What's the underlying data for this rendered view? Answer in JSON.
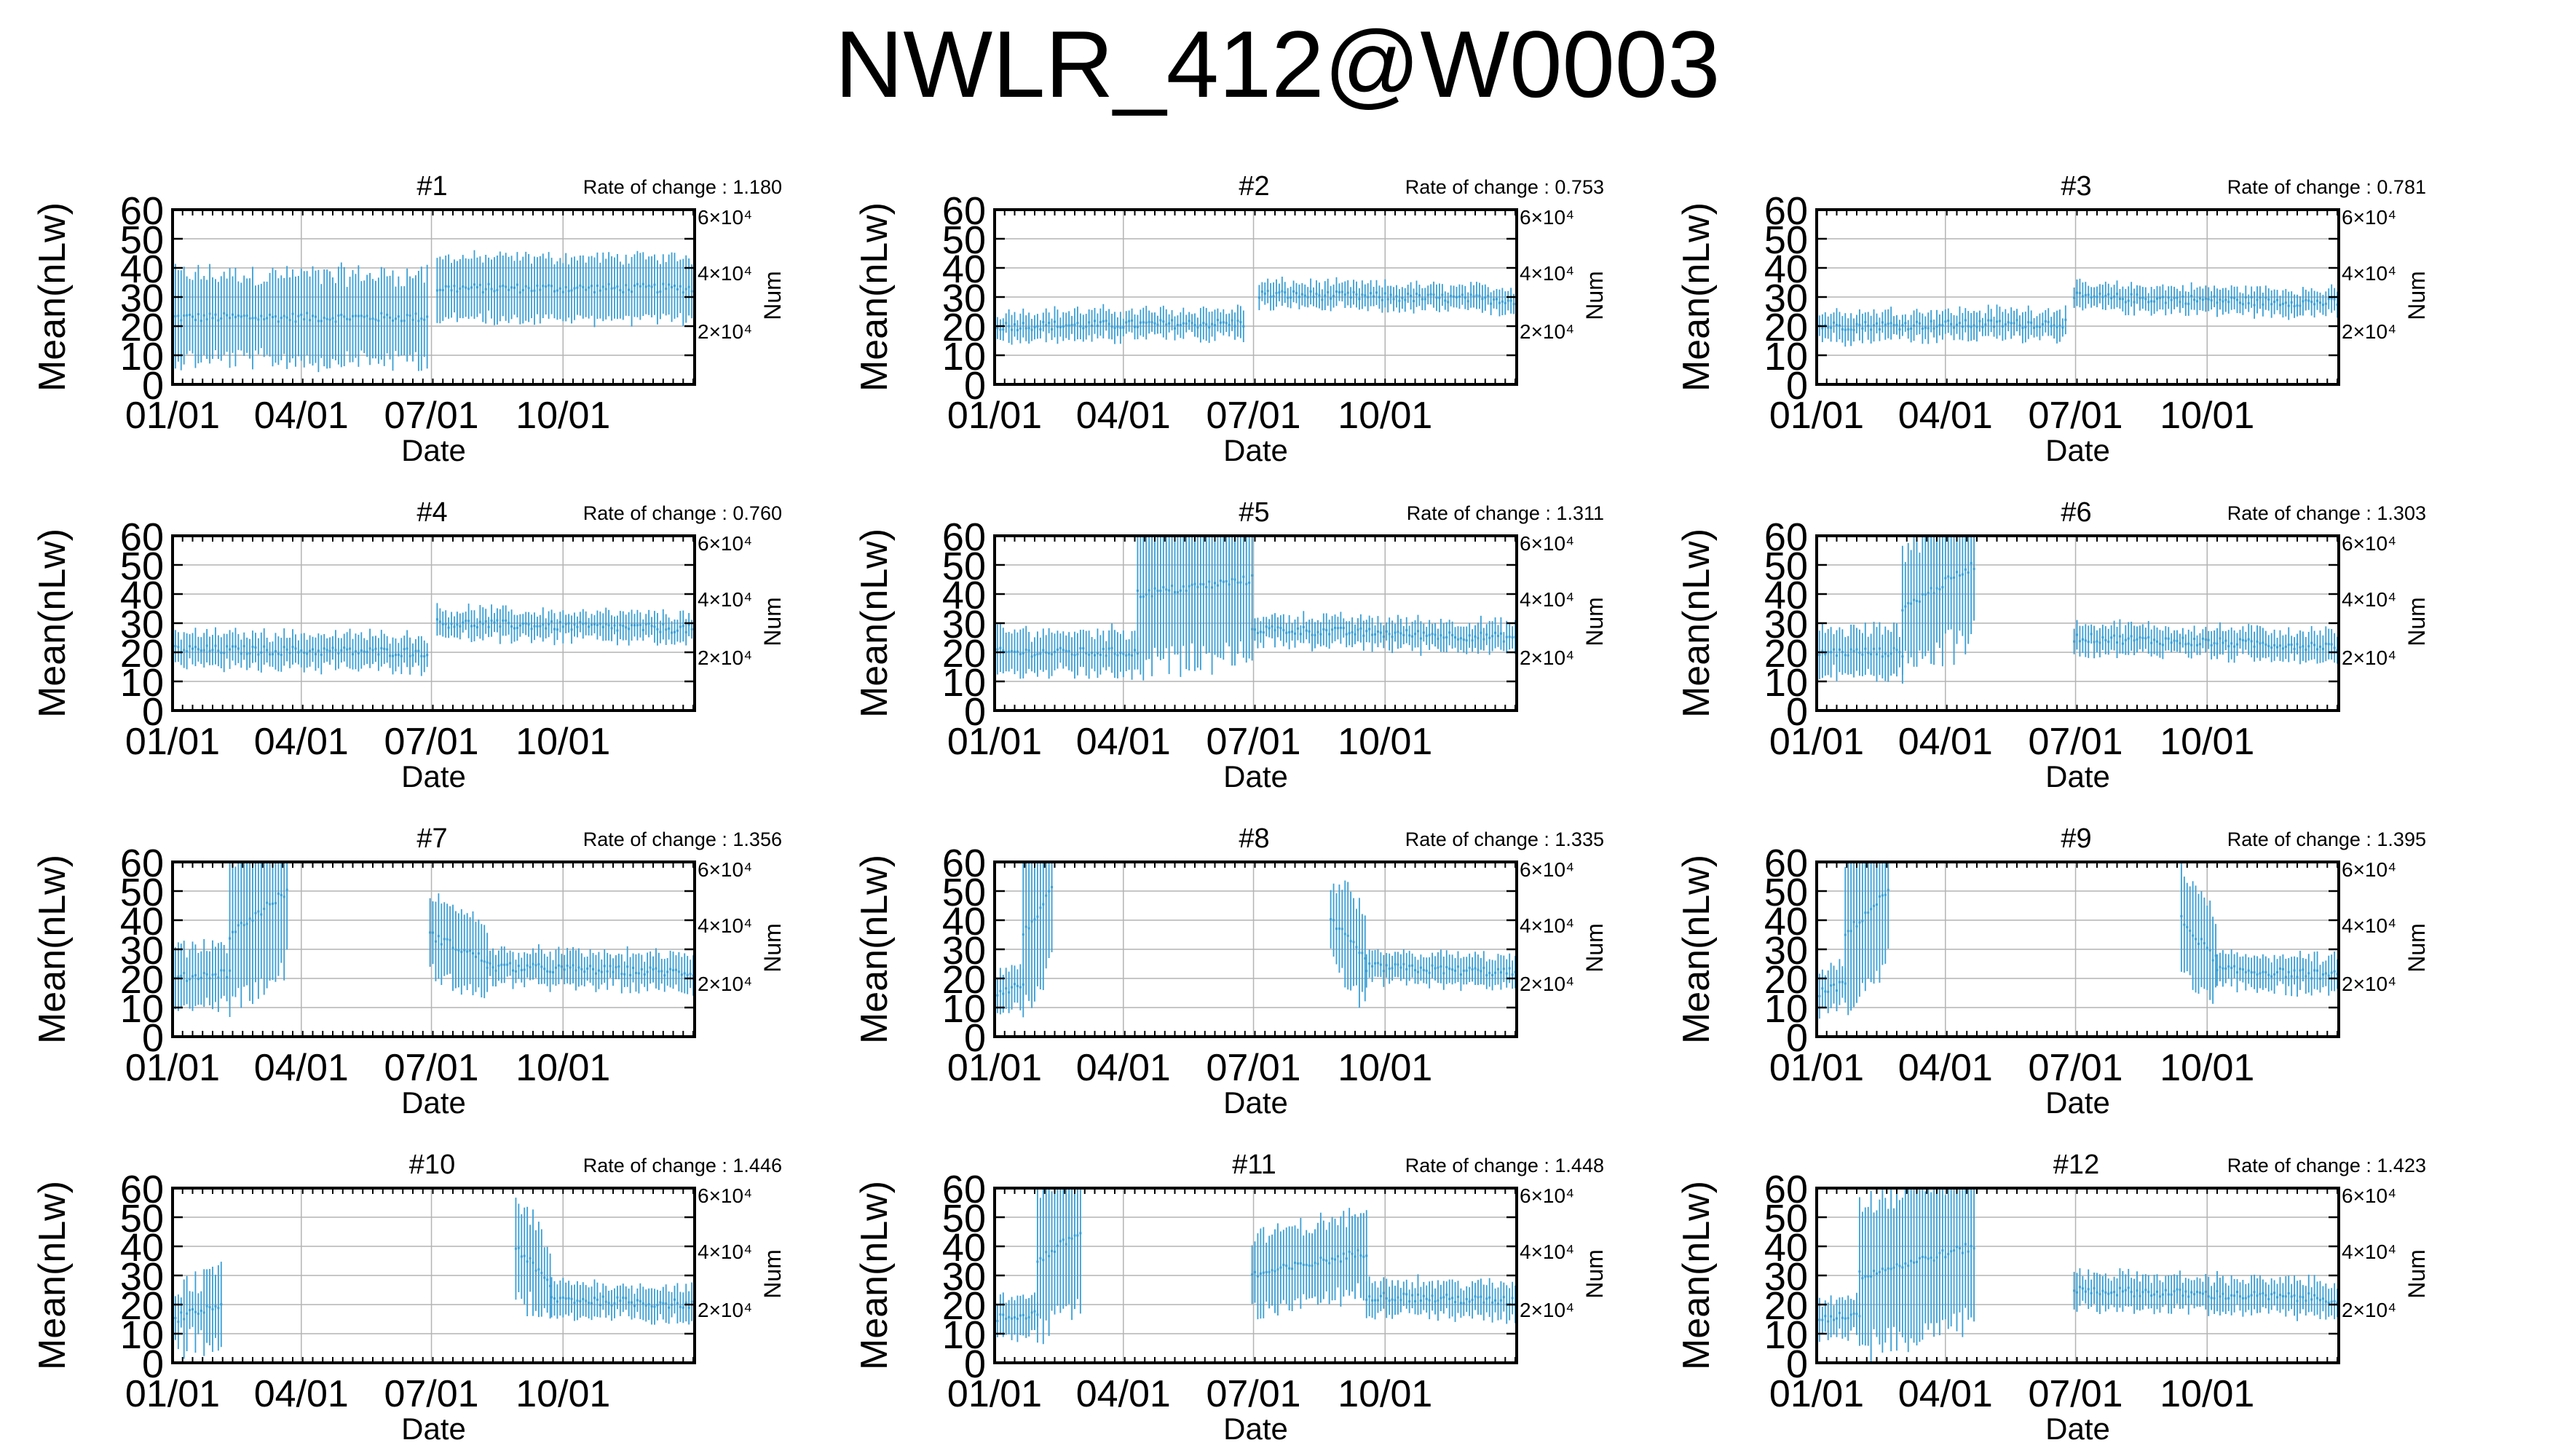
{
  "page_title": "NWLR_412@W0003",
  "colors": {
    "series": "#3a9fd6",
    "grid": "#b4b4b4",
    "axis": "#000000"
  },
  "chart_data": [
    {
      "type": "scatter",
      "title": "#1",
      "rate_text": "Rate of change : 1.180",
      "xlabel": "Date",
      "ylabel": "Mean(nLw)",
      "y2label": "Num",
      "x_ticks": [
        "01/01",
        "04/01",
        "07/01",
        "10/01"
      ],
      "y_ticks": [
        0,
        10,
        20,
        30,
        40,
        50,
        60
      ],
      "ylim": [
        0,
        60
      ],
      "y2_ticks": [
        "2×10⁴",
        "4×10⁴",
        "6×10⁴"
      ],
      "grid": true,
      "segments": [
        {
          "x": [
            0,
            178
          ],
          "y": [
            23,
            23
          ],
          "half_range": [
            11,
            18
          ]
        },
        {
          "x": [
            185,
            365
          ],
          "y": [
            33,
            33
          ],
          "half_range": [
            9,
            12
          ]
        }
      ],
      "gaps": []
    },
    {
      "type": "scatter",
      "title": "#2",
      "rate_text": "Rate of change : 0.753",
      "xlabel": "Date",
      "ylabel": "Mean(nLw)",
      "y2label": "Num",
      "x_ticks": [
        "01/01",
        "04/01",
        "07/01",
        "10/01"
      ],
      "y_ticks": [
        0,
        10,
        20,
        30,
        40,
        50,
        60
      ],
      "ylim": [
        0,
        60
      ],
      "y2_ticks": [
        "2×10⁴",
        "4×10⁴",
        "6×10⁴"
      ],
      "grid": true,
      "segments": [
        {
          "x": [
            0,
            175
          ],
          "y": [
            20,
            21
          ],
          "half_range": [
            3,
            6
          ]
        },
        {
          "x": [
            185,
            365
          ],
          "y": [
            31,
            29
          ],
          "half_range": [
            3,
            5
          ]
        }
      ],
      "gaps": []
    },
    {
      "type": "scatter",
      "title": "#3",
      "rate_text": "Rate of change : 0.781",
      "xlabel": "Date",
      "ylabel": "Mean(nLw)",
      "y2label": "Num",
      "x_ticks": [
        "01/01",
        "04/01",
        "07/01",
        "10/01"
      ],
      "y_ticks": [
        0,
        10,
        20,
        30,
        40,
        50,
        60
      ],
      "ylim": [
        0,
        60
      ],
      "y2_ticks": [
        "2×10⁴",
        "4×10⁴",
        "6×10⁴"
      ],
      "grid": true,
      "segments": [
        {
          "x": [
            0,
            175
          ],
          "y": [
            20,
            21
          ],
          "half_range": [
            3,
            6
          ]
        },
        {
          "x": [
            180,
            365
          ],
          "y": [
            30,
            28
          ],
          "half_range": [
            3,
            5
          ]
        }
      ],
      "gaps": []
    },
    {
      "type": "scatter",
      "title": "#4",
      "rate_text": "Rate of change : 0.760",
      "xlabel": "Date",
      "ylabel": "Mean(nLw)",
      "y2label": "Num",
      "x_ticks": [
        "01/01",
        "04/01",
        "07/01",
        "10/01"
      ],
      "y_ticks": [
        0,
        10,
        20,
        30,
        40,
        50,
        60
      ],
      "ylim": [
        0,
        60
      ],
      "y2_ticks": [
        "2×10⁴",
        "4×10⁴",
        "6×10⁴"
      ],
      "grid": true,
      "segments": [
        {
          "x": [
            0,
            178
          ],
          "y": [
            21,
            20
          ],
          "half_range": [
            4,
            7
          ]
        },
        {
          "x": [
            185,
            365
          ],
          "y": [
            30,
            28
          ],
          "half_range": [
            3,
            6
          ]
        }
      ],
      "gaps": []
    },
    {
      "type": "scatter",
      "title": "#5",
      "rate_text": "Rate of change : 1.311",
      "xlabel": "Date",
      "ylabel": "Mean(nLw)",
      "y2label": "Num",
      "x_ticks": [
        "01/01",
        "04/01",
        "07/01",
        "10/01"
      ],
      "y_ticks": [
        0,
        10,
        20,
        30,
        40,
        50,
        60
      ],
      "ylim": [
        0,
        60
      ],
      "y2_ticks": [
        "2×10⁴",
        "4×10⁴",
        "6×10⁴"
      ],
      "grid": true,
      "segments": [
        {
          "x": [
            0,
            100
          ],
          "y": [
            20,
            20
          ],
          "half_range": [
            5,
            9
          ]
        },
        {
          "x": [
            100,
            180
          ],
          "y": [
            40,
            45
          ],
          "half_range": [
            20,
            30
          ]
        },
        {
          "x": [
            180,
            365
          ],
          "y": [
            28,
            25
          ],
          "half_range": [
            3,
            6
          ]
        }
      ],
      "gaps": []
    },
    {
      "type": "scatter",
      "title": "#6",
      "rate_text": "Rate of change : 1.303",
      "xlabel": "Date",
      "ylabel": "Mean(nLw)",
      "y2label": "Num",
      "x_ticks": [
        "01/01",
        "04/01",
        "07/01",
        "10/01"
      ],
      "y_ticks": [
        0,
        10,
        20,
        30,
        40,
        50,
        60
      ],
      "ylim": [
        0,
        60
      ],
      "y2_ticks": [
        "2×10⁴",
        "4×10⁴",
        "6×10⁴"
      ],
      "grid": true,
      "segments": [
        {
          "x": [
            0,
            60
          ],
          "y": [
            20,
            20
          ],
          "half_range": [
            5,
            10
          ]
        },
        {
          "x": [
            60,
            110
          ],
          "y": [
            35,
            50
          ],
          "half_range": [
            15,
            30
          ]
        },
        {
          "x": [
            180,
            365
          ],
          "y": [
            25,
            22
          ],
          "half_range": [
            3,
            6
          ]
        }
      ],
      "gaps": [
        [
          110,
          180
        ]
      ]
    },
    {
      "type": "scatter",
      "title": "#7",
      "rate_text": "Rate of change : 1.356",
      "xlabel": "Date",
      "ylabel": "Mean(nLw)",
      "y2label": "Num",
      "x_ticks": [
        "01/01",
        "04/01",
        "07/01",
        "10/01"
      ],
      "y_ticks": [
        0,
        10,
        20,
        30,
        40,
        50,
        60
      ],
      "ylim": [
        0,
        60
      ],
      "y2_ticks": [
        "2×10⁴",
        "4×10⁴",
        "6×10⁴"
      ],
      "grid": true,
      "segments": [
        {
          "x": [
            0,
            40
          ],
          "y": [
            20,
            22
          ],
          "half_range": [
            8,
            12
          ]
        },
        {
          "x": [
            40,
            80
          ],
          "y": [
            35,
            50
          ],
          "half_range": [
            20,
            30
          ]
        },
        {
          "x": [
            180,
            220
          ],
          "y": [
            35,
            26
          ],
          "half_range": [
            10,
            15
          ]
        },
        {
          "x": [
            220,
            365
          ],
          "y": [
            24,
            22
          ],
          "half_range": [
            4,
            7
          ]
        }
      ],
      "gaps": [
        [
          80,
          180
        ]
      ]
    },
    {
      "type": "scatter",
      "title": "#8",
      "rate_text": "Rate of change : 1.335",
      "xlabel": "Date",
      "ylabel": "Mean(nLw)",
      "y2label": "Num",
      "x_ticks": [
        "01/01",
        "04/01",
        "07/01",
        "10/01"
      ],
      "y_ticks": [
        0,
        10,
        20,
        30,
        40,
        50,
        60
      ],
      "ylim": [
        0,
        60
      ],
      "y2_ticks": [
        "2×10⁴",
        "4×10⁴",
        "6×10⁴"
      ],
      "grid": true,
      "segments": [
        {
          "x": [
            0,
            20
          ],
          "y": [
            15,
            18
          ],
          "half_range": [
            5,
            8
          ]
        },
        {
          "x": [
            20,
            40
          ],
          "y": [
            35,
            50
          ],
          "half_range": [
            20,
            30
          ]
        },
        {
          "x": [
            235,
            260
          ],
          "y": [
            40,
            26
          ],
          "half_range": [
            10,
            20
          ]
        },
        {
          "x": [
            260,
            365
          ],
          "y": [
            24,
            22
          ],
          "half_range": [
            4,
            6
          ]
        }
      ],
      "gaps": [
        [
          40,
          235
        ]
      ]
    },
    {
      "type": "scatter",
      "title": "#9",
      "rate_text": "Rate of change : 1.395",
      "xlabel": "Date",
      "ylabel": "Mean(nLw)",
      "y2label": "Num",
      "x_ticks": [
        "01/01",
        "04/01",
        "07/01",
        "10/01"
      ],
      "y_ticks": [
        0,
        10,
        20,
        30,
        40,
        50,
        60
      ],
      "ylim": [
        0,
        60
      ],
      "y2_ticks": [
        "2×10⁴",
        "4×10⁴",
        "6×10⁴"
      ],
      "grid": true,
      "segments": [
        {
          "x": [
            0,
            20
          ],
          "y": [
            15,
            18
          ],
          "half_range": [
            5,
            8
          ]
        },
        {
          "x": [
            20,
            50
          ],
          "y": [
            35,
            50
          ],
          "half_range": [
            20,
            30
          ]
        },
        {
          "x": [
            255,
            280
          ],
          "y": [
            40,
            26
          ],
          "half_range": [
            10,
            20
          ]
        },
        {
          "x": [
            280,
            365
          ],
          "y": [
            23,
            21
          ],
          "half_range": [
            4,
            7
          ]
        }
      ],
      "gaps": [
        [
          50,
          255
        ]
      ]
    },
    {
      "type": "scatter",
      "title": "#10",
      "rate_text": "Rate of change : 1.446",
      "xlabel": "Date",
      "ylabel": "Mean(nLw)",
      "y2label": "Num",
      "x_ticks": [
        "01/01",
        "04/01",
        "07/01",
        "10/01"
      ],
      "y_ticks": [
        0,
        10,
        20,
        30,
        40,
        50,
        60
      ],
      "ylim": [
        0,
        60
      ],
      "y2_ticks": [
        "2×10⁴",
        "4×10⁴",
        "6×10⁴"
      ],
      "grid": true,
      "segments": [
        {
          "x": [
            0,
            35
          ],
          "y": [
            15,
            20
          ],
          "half_range": [
            5,
            15
          ]
        },
        {
          "x": [
            240,
            265
          ],
          "y": [
            40,
            26
          ],
          "half_range": [
            10,
            20
          ]
        },
        {
          "x": [
            265,
            365
          ],
          "y": [
            22,
            20
          ],
          "half_range": [
            4,
            7
          ]
        }
      ],
      "gaps": [
        [
          35,
          240
        ]
      ]
    },
    {
      "type": "scatter",
      "title": "#11",
      "rate_text": "Rate of change : 1.448",
      "xlabel": "Date",
      "ylabel": "Mean(nLw)",
      "y2label": "Num",
      "x_ticks": [
        "01/01",
        "04/01",
        "07/01",
        "10/01"
      ],
      "y_ticks": [
        0,
        10,
        20,
        30,
        40,
        50,
        60
      ],
      "ylim": [
        0,
        60
      ],
      "y2_ticks": [
        "2×10⁴",
        "4×10⁴",
        "6×10⁴"
      ],
      "grid": true,
      "segments": [
        {
          "x": [
            0,
            30
          ],
          "y": [
            15,
            17
          ],
          "half_range": [
            4,
            8
          ]
        },
        {
          "x": [
            30,
            60
          ],
          "y": [
            35,
            45
          ],
          "half_range": [
            20,
            30
          ]
        },
        {
          "x": [
            180,
            260
          ],
          "y": [
            30,
            38
          ],
          "half_range": [
            10,
            16
          ]
        },
        {
          "x": [
            260,
            365
          ],
          "y": [
            23,
            21
          ],
          "half_range": [
            4,
            7
          ]
        }
      ],
      "gaps": [
        [
          60,
          180
        ]
      ]
    },
    {
      "type": "scatter",
      "title": "#12",
      "rate_text": "Rate of change : 1.423",
      "xlabel": "Date",
      "ylabel": "Mean(nLw)",
      "y2label": "Num",
      "x_ticks": [
        "01/01",
        "04/01",
        "07/01",
        "10/01"
      ],
      "y_ticks": [
        0,
        10,
        20,
        30,
        40,
        50,
        60
      ],
      "ylim": [
        0,
        60
      ],
      "y2_ticks": [
        "2×10⁴",
        "4×10⁴",
        "6×10⁴"
      ],
      "grid": true,
      "segments": [
        {
          "x": [
            0,
            30
          ],
          "y": [
            15,
            17
          ],
          "half_range": [
            4,
            8
          ]
        },
        {
          "x": [
            30,
            110
          ],
          "y": [
            30,
            40
          ],
          "half_range": [
            20,
            30
          ]
        },
        {
          "x": [
            180,
            365
          ],
          "y": [
            25,
            22
          ],
          "half_range": [
            4,
            7
          ]
        }
      ],
      "gaps": [
        [
          110,
          180
        ]
      ]
    }
  ]
}
